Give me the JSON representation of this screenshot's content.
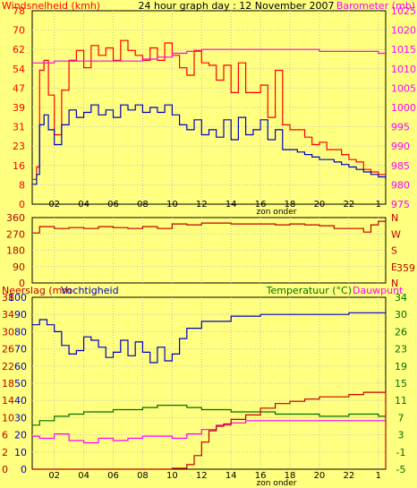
{
  "chart_data": [
    {
      "type": "line",
      "title": "24 hour graph day : 12 November 2007",
      "ylabel_left": "Windsnelheid (kmh)",
      "ylabel_right": "Barometer (mb)",
      "xlabel": "zon onder",
      "x_ticks": [
        "02",
        "04",
        "06",
        "08",
        "10",
        "12",
        "14",
        "16",
        "18",
        "20",
        "22",
        "1"
      ],
      "yticks_left": [
        "0",
        "8",
        "16",
        "23",
        "31",
        "39",
        "47",
        "54",
        "62",
        "70",
        "78"
      ],
      "yticks_right": [
        "975",
        "980",
        "985",
        "990",
        "995",
        "1000",
        "1005",
        "1010",
        "1015",
        "1020",
        "1025"
      ],
      "ylim_left": [
        0,
        78
      ],
      "ylim_right": [
        975,
        1025
      ],
      "x_range_hours": [
        0.5,
        24.5
      ],
      "colors": {
        "gust": "#FF0000",
        "avg": "#0000C0",
        "baro": "#FF00FF"
      },
      "series": [
        {
          "axis": "left",
          "color_key": "gust",
          "x": [
            0.5,
            0.8,
            1.0,
            1.3,
            1.6,
            2.0,
            2.5,
            3.0,
            3.5,
            4.0,
            4.5,
            5.0,
            5.5,
            6.0,
            6.5,
            7.0,
            7.5,
            8.0,
            8.5,
            9.0,
            9.5,
            10.0,
            10.5,
            11.0,
            11.5,
            12.0,
            12.5,
            13.0,
            13.5,
            14.0,
            14.5,
            15.0,
            15.5,
            16.0,
            16.5,
            17.0,
            17.5,
            18.0,
            18.5,
            19.0,
            19.5,
            20.0,
            20.5,
            21.0,
            21.5,
            22.0,
            22.5,
            23.0,
            23.5,
            24.0,
            24.5
          ],
          "values": [
            10,
            15,
            54,
            58,
            44,
            28,
            46,
            58,
            62,
            55,
            64,
            60,
            63,
            58,
            66,
            62,
            60,
            58,
            63,
            58,
            65,
            60,
            55,
            52,
            62,
            57,
            56,
            50,
            56,
            45,
            57,
            45,
            45,
            48,
            35,
            54,
            32,
            30,
            30,
            27,
            24,
            25,
            22,
            22,
            20,
            18,
            17,
            14,
            13,
            12,
            12
          ]
        },
        {
          "axis": "left",
          "color_key": "avg",
          "x": [
            0.5,
            0.8,
            1.0,
            1.3,
            1.6,
            2.0,
            2.5,
            3.0,
            3.5,
            4.0,
            4.5,
            5.0,
            5.5,
            6.0,
            6.5,
            7.0,
            7.5,
            8.0,
            8.5,
            9.0,
            9.5,
            10.0,
            10.5,
            11.0,
            11.5,
            12.0,
            12.5,
            13.0,
            13.5,
            14.0,
            14.5,
            15.0,
            15.5,
            16.0,
            16.5,
            17.0,
            17.5,
            18.0,
            18.5,
            19.0,
            19.5,
            20.0,
            20.5,
            21.0,
            21.5,
            22.0,
            22.5,
            23.0,
            23.5,
            24.0,
            24.5
          ],
          "values": [
            8,
            12,
            32,
            36,
            30,
            24,
            32,
            38,
            35,
            37,
            40,
            36,
            38,
            35,
            40,
            38,
            40,
            37,
            39,
            37,
            40,
            36,
            32,
            30,
            34,
            28,
            30,
            27,
            34,
            26,
            35,
            28,
            30,
            34,
            26,
            30,
            22,
            22,
            21,
            20,
            19,
            18,
            18,
            17,
            16,
            15,
            14,
            13,
            12,
            11,
            10
          ]
        },
        {
          "axis": "right",
          "color_key": "baro",
          "x": [
            0.5,
            2.0,
            4.0,
            6.0,
            8.0,
            9.0,
            10.0,
            11.0,
            12.0,
            14.0,
            16.0,
            18.0,
            20.0,
            22.0,
            24.0,
            24.5
          ],
          "values": [
            1011.5,
            1012,
            1012,
            1012,
            1012.5,
            1013,
            1014,
            1014.5,
            1015,
            1015,
            1015,
            1015,
            1014.5,
            1014.5,
            1014,
            1014
          ]
        }
      ]
    },
    {
      "type": "line",
      "ylabel_right": "N W S E N",
      "yticks_left": [
        "0",
        "90",
        "180",
        "270",
        "360"
      ],
      "right_letters": [
        "N",
        "W",
        "S",
        "E",
        "N"
      ],
      "right_value": "359",
      "ylim": [
        0,
        360
      ],
      "colors": {
        "dir": "#C00000"
      },
      "series": [
        {
          "color_key": "dir",
          "x": [
            0.5,
            1.0,
            2.0,
            3.0,
            4.0,
            5.0,
            6.0,
            7.0,
            8.0,
            9.0,
            10.0,
            11.0,
            12.0,
            13.0,
            14.0,
            15.0,
            16.0,
            17.0,
            18.0,
            19.0,
            20.0,
            21.0,
            22.0,
            23.0,
            23.5,
            24.0,
            24.5
          ],
          "values": [
            275,
            310,
            300,
            305,
            300,
            310,
            305,
            300,
            310,
            300,
            325,
            320,
            330,
            330,
            325,
            325,
            325,
            320,
            325,
            320,
            315,
            300,
            300,
            280,
            320,
            340,
            340
          ]
        }
      ]
    },
    {
      "type": "line",
      "ylabel_left": "Neerslag (mm",
      "ylabel_left2": "Vochtigheid",
      "ylabel_right": "Temperatuur (°C)",
      "ylabel_right2": "Dauwpunt",
      "xlabel": "zon onder",
      "x_ticks": [
        "02",
        "04",
        "06",
        "08",
        "10",
        "12",
        "14",
        "16",
        "18",
        "20",
        "22",
        "1"
      ],
      "yticks_rain": [
        "0",
        "2",
        "6",
        "10",
        "14",
        "18",
        "22",
        "26",
        "30",
        "34",
        "38"
      ],
      "yticks_hum": [
        "0",
        "10",
        "20",
        "30",
        "40",
        "50",
        "60",
        "70",
        "80",
        "90",
        "100"
      ],
      "yticks_temp": [
        "-5",
        "-1",
        "3",
        "7",
        "11",
        "15",
        "19",
        "23",
        "26",
        "30",
        "34"
      ],
      "ylim_hum": [
        0,
        100
      ],
      "ylim_temp": [
        -5,
        34
      ],
      "ylim_rain": [
        0,
        38
      ],
      "colors": {
        "hum": "#0000C0",
        "temp": "#007000",
        "dew": "#FF00FF",
        "rain": "#C00000"
      },
      "series": [
        {
          "axis": "hum",
          "color_key": "hum",
          "x": [
            0.5,
            1.0,
            1.5,
            2.0,
            2.5,
            3.0,
            3.5,
            4.0,
            4.5,
            5.0,
            5.5,
            6.0,
            6.5,
            7.0,
            7.5,
            8.0,
            8.5,
            9.0,
            9.5,
            10.0,
            10.5,
            11.0,
            12.0,
            13.0,
            14.0,
            15.0,
            16.0,
            17.0,
            18.0,
            19.0,
            20.0,
            21.0,
            22.0,
            23.0,
            24.0,
            24.5
          ],
          "values": [
            84,
            87,
            84,
            80,
            72,
            67,
            69,
            77,
            75,
            71,
            65,
            68,
            75,
            66,
            74,
            68,
            62,
            71,
            63,
            67,
            76,
            82,
            86,
            86,
            89,
            89,
            90,
            90,
            90,
            90,
            90,
            90,
            91,
            91,
            91,
            91
          ]
        },
        {
          "axis": "temp",
          "color_key": "temp",
          "x": [
            0.5,
            1.0,
            2.0,
            3.0,
            4.0,
            5.0,
            6.0,
            7.0,
            8.0,
            9.0,
            10.0,
            11.0,
            12.0,
            13.0,
            14.0,
            15.0,
            16.0,
            17.0,
            18.0,
            19.0,
            20.0,
            21.0,
            22.0,
            23.0,
            24.0,
            24.5
          ],
          "values": [
            5,
            6,
            7,
            7.5,
            8,
            8,
            8.5,
            8.5,
            9,
            9.5,
            9.5,
            9,
            8.5,
            8.5,
            8,
            8,
            8,
            7.5,
            7.5,
            7.5,
            7,
            7,
            7.5,
            7.5,
            7,
            7
          ]
        },
        {
          "axis": "temp",
          "color_key": "dew",
          "x": [
            0.5,
            1.0,
            2.0,
            3.0,
            4.0,
            5.0,
            6.0,
            7.0,
            8.0,
            9.0,
            10.0,
            11.0,
            12.0,
            13.0,
            14.0,
            15.0,
            16.0,
            17.0,
            18.0,
            19.0,
            20.0,
            21.0,
            22.0,
            23.0,
            24.0,
            24.5
          ],
          "values": [
            2.5,
            2,
            3,
            1.5,
            1,
            2,
            1.5,
            2,
            2.5,
            2.5,
            2,
            3,
            4,
            5,
            5.5,
            6,
            6,
            6,
            6,
            6,
            6,
            6,
            6,
            6,
            6,
            6
          ]
        },
        {
          "axis": "rain",
          "color_key": "rain",
          "x": [
            0.5,
            3.0,
            6.0,
            9.0,
            10.0,
            11.0,
            11.5,
            12.0,
            12.5,
            13.0,
            13.5,
            14.0,
            15.0,
            16.0,
            17.0,
            18.0,
            19.0,
            20.0,
            21.0,
            22.0,
            23.0,
            24.0,
            24.5
          ],
          "values": [
            0,
            0,
            0,
            0,
            0.2,
            1,
            3,
            6,
            8.5,
            9.5,
            10,
            11,
            12,
            13.5,
            14.5,
            15,
            15.5,
            16,
            16,
            16.5,
            17,
            17,
            0
          ]
        }
      ]
    }
  ]
}
